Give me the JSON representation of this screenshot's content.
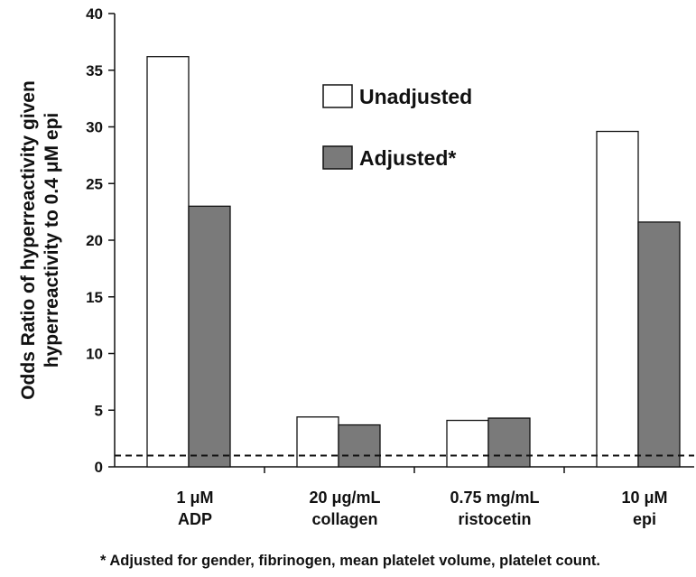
{
  "chart_data": {
    "type": "bar",
    "categories": [
      [
        "1 μM",
        "ADP"
      ],
      [
        "20 μg/mL",
        "collagen"
      ],
      [
        "0.75 mg/mL",
        "ristocetin"
      ],
      [
        "10 μM",
        "epi"
      ]
    ],
    "series": [
      {
        "name": "Unadjusted",
        "color": "#ffffff",
        "values": [
          36.2,
          4.4,
          4.1,
          29.6
        ]
      },
      {
        "name": "Adjusted*",
        "color": "#7a7a7a",
        "values": [
          23.0,
          3.7,
          4.3,
          21.6
        ]
      }
    ],
    "ylabel": [
      "Odds Ratio of hyperreactivity given",
      "hyperreactivity to 0.4 μM epi"
    ],
    "ylim": [
      0,
      40
    ],
    "yticks": [
      0,
      5,
      10,
      15,
      20,
      25,
      30,
      35,
      40
    ],
    "reference_line": {
      "value": 1,
      "style": "dashed"
    },
    "footnote": "* Adjusted for gender, fibrinogen, mean platelet volume, platelet count.",
    "legend_position": "top-center",
    "grid": false
  }
}
